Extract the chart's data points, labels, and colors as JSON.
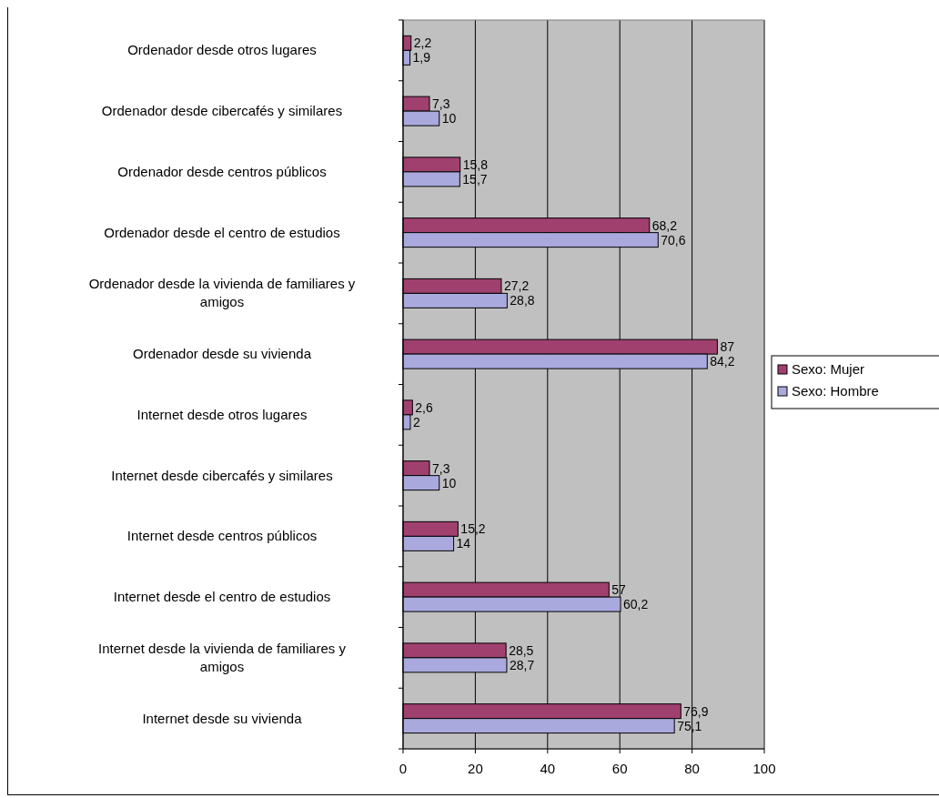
{
  "chart_data": {
    "type": "bar",
    "orientation": "horizontal",
    "categories": [
      "Ordenador desde otros lugares",
      "Ordenador desde cibercafés y similares",
      "Ordenador desde centros públicos",
      "Ordenador desde el centro de estudios",
      "Ordenador desde la vivienda de familiares y amigos",
      "Ordenador desde su vivienda",
      "Internet desde otros lugares",
      "Internet desde cibercafés y similares",
      "Internet desde centros públicos",
      "Internet desde el centro de estudios",
      "Internet desde la vivienda de familiares y amigos",
      "Internet desde su vivienda"
    ],
    "series": [
      {
        "name": "Sexo: Mujer",
        "color": "#a0406e",
        "values": [
          2.2,
          7.3,
          15.8,
          68.2,
          27.2,
          87,
          2.6,
          7.3,
          15.2,
          57,
          28.5,
          76.9
        ],
        "value_labels": [
          "2,2",
          "7,3",
          "15,8",
          "68,2",
          "27,2",
          "87",
          "2,6",
          "7,3",
          "15,2",
          "57",
          "28,5",
          "76,9"
        ]
      },
      {
        "name": "Sexo: Hombre",
        "color": "#a9a9dd",
        "values": [
          1.9,
          10,
          15.7,
          70.6,
          28.8,
          84.2,
          2,
          10,
          14,
          60.2,
          28.7,
          75.1
        ],
        "value_labels": [
          "1,9",
          "10",
          "15,7",
          "70,6",
          "28,8",
          "84,2",
          "2",
          "10",
          "14",
          "60,2",
          "28,7",
          "75,1"
        ]
      }
    ],
    "xlim": [
      0,
      100
    ],
    "xticks": [
      0,
      20,
      40,
      60,
      80,
      100
    ],
    "grid": "x",
    "legend": "right"
  }
}
